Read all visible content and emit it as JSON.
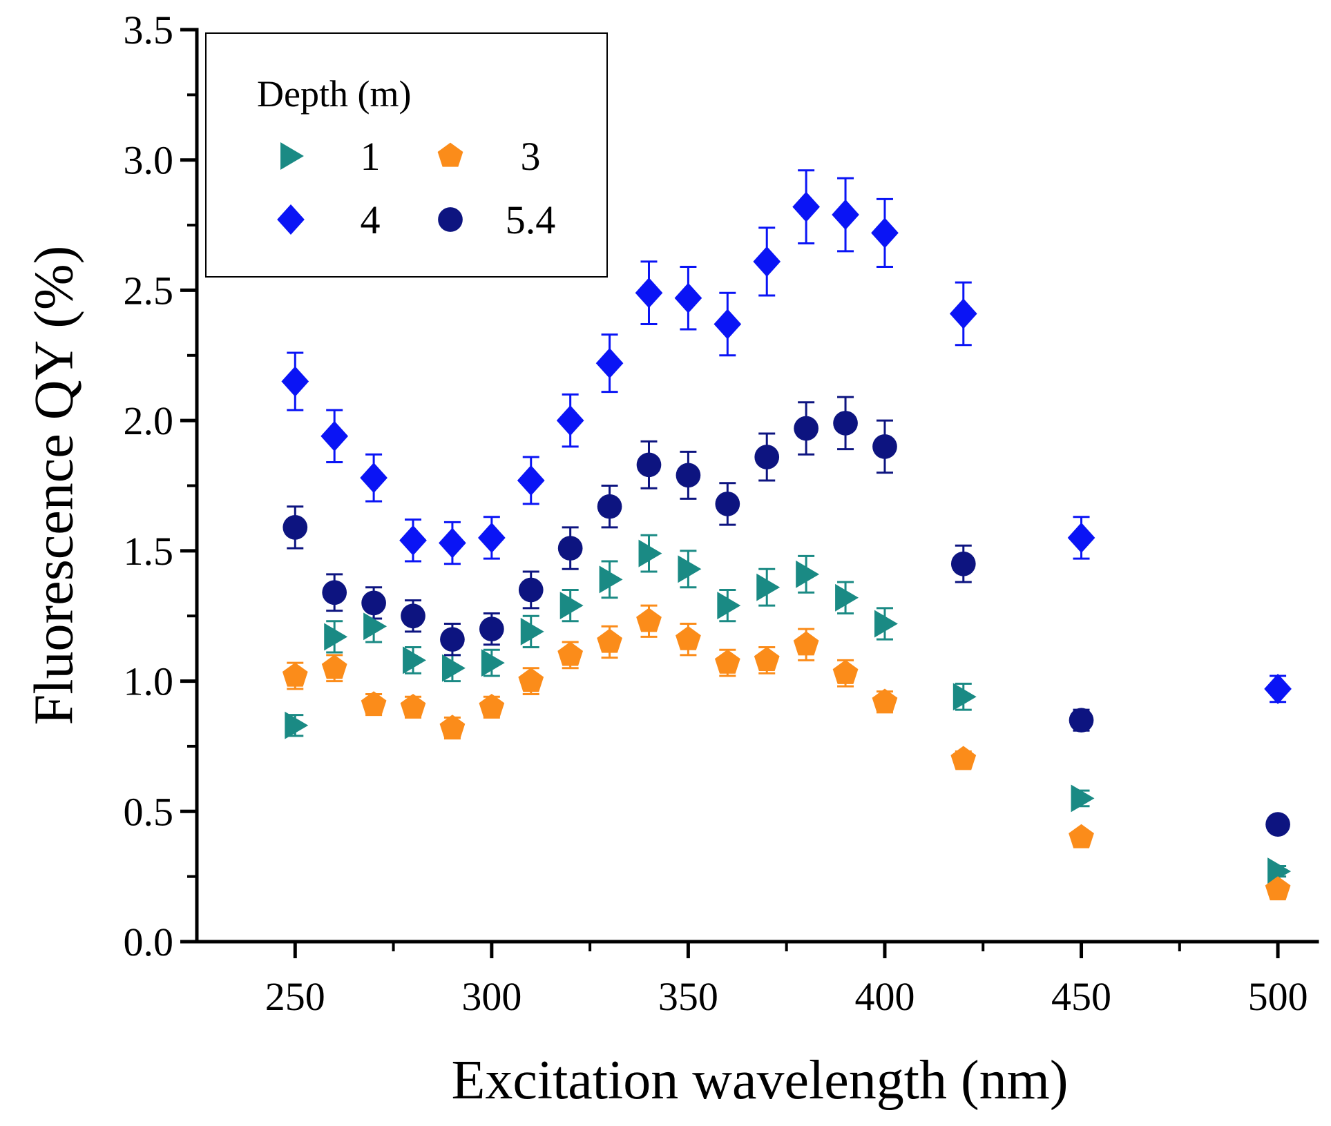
{
  "chart_data": {
    "type": "scatter",
    "title": "",
    "xlabel": "Excitation wavelength (nm)",
    "ylabel": "Fluorescence QY (%)",
    "xlim": [
      225,
      510
    ],
    "ylim": [
      0,
      3.5
    ],
    "x_ticks": [
      250,
      300,
      350,
      400,
      450,
      500
    ],
    "x_tick_labels": [
      "250",
      "300",
      "350",
      "400",
      "450",
      "500"
    ],
    "x_minor_ticks": [
      275,
      325,
      375,
      425,
      475
    ],
    "y_ticks": [
      0,
      0.5,
      1.0,
      1.5,
      2.0,
      2.5,
      3.0,
      3.5
    ],
    "y_tick_labels": [
      "0.0",
      "0.5",
      "1.0",
      "1.5",
      "2.0",
      "2.5",
      "3.0",
      "3.5"
    ],
    "y_minor_ticks": [
      0.25,
      0.75,
      1.25,
      1.75,
      2.25,
      2.75,
      3.25
    ],
    "grid": false,
    "legend": {
      "title": "Depth (m)",
      "position": "top-left",
      "columns": 2
    },
    "series": [
      {
        "name": "1",
        "marker": "triangle-right",
        "color": "#1a8a84",
        "x": [
          250,
          260,
          270,
          280,
          290,
          300,
          310,
          320,
          330,
          340,
          350,
          360,
          370,
          380,
          390,
          400,
          420,
          450,
          500
        ],
        "y": [
          0.83,
          1.17,
          1.21,
          1.08,
          1.05,
          1.07,
          1.19,
          1.29,
          1.39,
          1.49,
          1.43,
          1.29,
          1.36,
          1.41,
          1.32,
          1.22,
          0.94,
          0.55,
          0.27
        ],
        "err": [
          0.04,
          0.06,
          0.06,
          0.05,
          0.05,
          0.05,
          0.06,
          0.06,
          0.07,
          0.07,
          0.07,
          0.06,
          0.07,
          0.07,
          0.06,
          0.06,
          0.05,
          0.03,
          0.02
        ]
      },
      {
        "name": "3",
        "marker": "pentagon",
        "color": "#fb8c1a",
        "x": [
          250,
          260,
          270,
          280,
          290,
          300,
          310,
          320,
          330,
          340,
          350,
          360,
          370,
          380,
          390,
          400,
          420,
          450,
          500
        ],
        "y": [
          1.02,
          1.05,
          0.91,
          0.9,
          0.82,
          0.9,
          1.0,
          1.1,
          1.15,
          1.23,
          1.16,
          1.07,
          1.08,
          1.14,
          1.03,
          0.92,
          0.7,
          0.4,
          0.2
        ],
        "err": [
          0.05,
          0.05,
          0.04,
          0.04,
          0.04,
          0.04,
          0.05,
          0.05,
          0.06,
          0.06,
          0.06,
          0.05,
          0.05,
          0.06,
          0.05,
          0.04,
          0.03,
          0.02,
          0.01
        ]
      },
      {
        "name": "4",
        "marker": "diamond",
        "color": "#0a14f5",
        "x": [
          250,
          260,
          270,
          280,
          290,
          300,
          310,
          320,
          330,
          340,
          350,
          360,
          370,
          380,
          390,
          400,
          420,
          450,
          500
        ],
        "y": [
          2.15,
          1.94,
          1.78,
          1.54,
          1.53,
          1.55,
          1.77,
          2.0,
          2.22,
          2.49,
          2.47,
          2.37,
          2.61,
          2.82,
          2.79,
          2.72,
          2.41,
          1.55,
          0.97
        ],
        "err": [
          0.11,
          0.1,
          0.09,
          0.08,
          0.08,
          0.08,
          0.09,
          0.1,
          0.11,
          0.12,
          0.12,
          0.12,
          0.13,
          0.14,
          0.14,
          0.13,
          0.12,
          0.08,
          0.05
        ]
      },
      {
        "name": "5.4",
        "marker": "circle",
        "color": "#0d1480",
        "x": [
          250,
          260,
          270,
          280,
          290,
          300,
          310,
          320,
          330,
          340,
          350,
          360,
          370,
          380,
          390,
          400,
          420,
          450,
          500
        ],
        "y": [
          1.59,
          1.34,
          1.3,
          1.25,
          1.16,
          1.2,
          1.35,
          1.51,
          1.67,
          1.83,
          1.79,
          1.68,
          1.86,
          1.97,
          1.99,
          1.9,
          1.45,
          0.85,
          0.45
        ],
        "err": [
          0.08,
          0.07,
          0.06,
          0.06,
          0.06,
          0.06,
          0.07,
          0.08,
          0.08,
          0.09,
          0.09,
          0.08,
          0.09,
          0.1,
          0.1,
          0.1,
          0.07,
          0.04,
          0.02
        ]
      }
    ]
  }
}
